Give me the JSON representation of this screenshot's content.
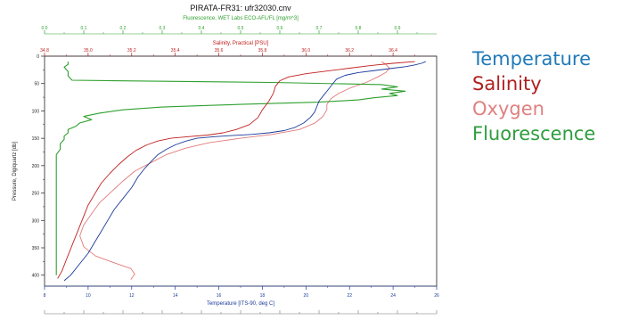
{
  "chart_data": {
    "type": "line",
    "title": "PIRATA-FR31: ufr32030.cnv",
    "ylabel": "Pressure, Digiquartz [db]",
    "ylim": [
      0,
      420
    ],
    "y_reversed": true,
    "y_ticks": [
      "0",
      "50",
      "100",
      "150",
      "200",
      "250",
      "300",
      "350",
      "400"
    ],
    "axes": {
      "temperature": {
        "label": "Temperature [ITS-90, deg C]",
        "position": "bottom",
        "range": [
          8,
          26
        ],
        "ticks": [
          "8",
          "10",
          "12",
          "14",
          "16",
          "18",
          "20",
          "22",
          "24",
          "26"
        ],
        "color": "#1a3a9a"
      },
      "salinity": {
        "label": "Salinity, Practical [PSU]",
        "position": "top-inner",
        "range": [
          34.8,
          36.6
        ],
        "ticks": [
          "34.8",
          "35.0",
          "35.2",
          "35.4",
          "35.6",
          "35.8",
          "36.0",
          "36.2",
          "36.4"
        ],
        "color": "#c02020"
      },
      "fluorescence": {
        "label": "Fluorescence, WET Labs ECO-AFL/FL [mg/m^3]",
        "position": "top-outer",
        "range": [
          0.0,
          1.0
        ],
        "ticks": [
          "0.0",
          "0.1",
          "0.2",
          "0.3",
          "0.4",
          "0.5",
          "0.6",
          "0.7",
          "0.8",
          "0.9"
        ],
        "color": "#2fa02f"
      },
      "oxygen": {
        "position": "bottom-outer",
        "range": [
          0,
          1
        ],
        "color": "#e07a7a"
      }
    },
    "series": [
      {
        "key": "temperature",
        "name": "Temperature",
        "color": "#1a3a9a",
        "points": [
          [
            25.5,
            10
          ],
          [
            25.3,
            13
          ],
          [
            25.0,
            16
          ],
          [
            24.6,
            19
          ],
          [
            24.0,
            22
          ],
          [
            23.2,
            26
          ],
          [
            22.4,
            30
          ],
          [
            21.8,
            35
          ],
          [
            21.4,
            42
          ],
          [
            21.2,
            52
          ],
          [
            21.0,
            62
          ],
          [
            20.8,
            72
          ],
          [
            20.6,
            82
          ],
          [
            20.5,
            92
          ],
          [
            20.4,
            102
          ],
          [
            20.2,
            112
          ],
          [
            19.9,
            122
          ],
          [
            19.5,
            130
          ],
          [
            19.0,
            136
          ],
          [
            18.3,
            140
          ],
          [
            17.5,
            143
          ],
          [
            16.6,
            145
          ],
          [
            15.8,
            147
          ],
          [
            15.0,
            150
          ],
          [
            14.5,
            155
          ],
          [
            14.0,
            162
          ],
          [
            13.6,
            170
          ],
          [
            13.2,
            180
          ],
          [
            12.9,
            192
          ],
          [
            12.6,
            205
          ],
          [
            12.3,
            220
          ],
          [
            12.0,
            240
          ],
          [
            11.6,
            260
          ],
          [
            11.2,
            280
          ],
          [
            10.9,
            300
          ],
          [
            10.6,
            320
          ],
          [
            10.3,
            340
          ],
          [
            10.0,
            360
          ],
          [
            9.6,
            380
          ],
          [
            9.2,
            400
          ],
          [
            8.9,
            410
          ]
        ]
      },
      {
        "key": "salinity",
        "name": "Salinity",
        "color": "#c02020",
        "points": [
          [
            36.5,
            10
          ],
          [
            36.4,
            13
          ],
          [
            36.3,
            17
          ],
          [
            36.2,
            22
          ],
          [
            36.1,
            27
          ],
          [
            36.0,
            32
          ],
          [
            35.92,
            38
          ],
          [
            35.88,
            45
          ],
          [
            35.86,
            55
          ],
          [
            35.85,
            68
          ],
          [
            35.83,
            82
          ],
          [
            35.8,
            98
          ],
          [
            35.78,
            112
          ],
          [
            35.74,
            125
          ],
          [
            35.68,
            134
          ],
          [
            35.62,
            140
          ],
          [
            35.55,
            144
          ],
          [
            35.46,
            147
          ],
          [
            35.38,
            150
          ],
          [
            35.32,
            155
          ],
          [
            35.27,
            162
          ],
          [
            35.22,
            172
          ],
          [
            35.18,
            184
          ],
          [
            35.14,
            198
          ],
          [
            35.1,
            214
          ],
          [
            35.06,
            232
          ],
          [
            35.03,
            252
          ],
          [
            35.0,
            272
          ],
          [
            34.98,
            292
          ],
          [
            34.96,
            312
          ],
          [
            34.94,
            332
          ],
          [
            34.92,
            352
          ],
          [
            34.9,
            372
          ],
          [
            34.88,
            392
          ],
          [
            34.86,
            406
          ]
        ]
      },
      {
        "key": "oxygen",
        "name": "Oxygen",
        "color": "#e07a7a",
        "points": [
          [
            0.86,
            10
          ],
          [
            0.87,
            15
          ],
          [
            0.88,
            22
          ],
          [
            0.87,
            30
          ],
          [
            0.85,
            38
          ],
          [
            0.82,
            48
          ],
          [
            0.78,
            58
          ],
          [
            0.75,
            68
          ],
          [
            0.73,
            78
          ],
          [
            0.72,
            88
          ],
          [
            0.72,
            98
          ],
          [
            0.71,
            110
          ],
          [
            0.69,
            122
          ],
          [
            0.65,
            134
          ],
          [
            0.58,
            143
          ],
          [
            0.5,
            150
          ],
          [
            0.42,
            158
          ],
          [
            0.36,
            168
          ],
          [
            0.31,
            180
          ],
          [
            0.27,
            195
          ],
          [
            0.23,
            210
          ],
          [
            0.2,
            228
          ],
          [
            0.17,
            248
          ],
          [
            0.14,
            268
          ],
          [
            0.12,
            288
          ],
          [
            0.1,
            308
          ],
          [
            0.09,
            328
          ],
          [
            0.1,
            348
          ],
          [
            0.13,
            365
          ],
          [
            0.18,
            378
          ],
          [
            0.22,
            388
          ],
          [
            0.23,
            398
          ],
          [
            0.22,
            408
          ]
        ]
      },
      {
        "key": "fluorescence",
        "name": "Fluorescence",
        "color": "#2fa02f",
        "points": [
          [
            0.06,
            10
          ],
          [
            0.06,
            15
          ],
          [
            0.05,
            20
          ],
          [
            0.06,
            28
          ],
          [
            0.06,
            36
          ],
          [
            0.07,
            44
          ],
          [
            0.58,
            48
          ],
          [
            0.86,
            52
          ],
          [
            0.9,
            56
          ],
          [
            0.86,
            60
          ],
          [
            0.92,
            64
          ],
          [
            0.88,
            68
          ],
          [
            0.9,
            72
          ],
          [
            0.84,
            76
          ],
          [
            0.8,
            80
          ],
          [
            0.7,
            84
          ],
          [
            0.5,
            88
          ],
          [
            0.3,
            93
          ],
          [
            0.2,
            98
          ],
          [
            0.14,
            104
          ],
          [
            0.1,
            110
          ],
          [
            0.12,
            116
          ],
          [
            0.09,
            122
          ],
          [
            0.08,
            128
          ],
          [
            0.06,
            134
          ],
          [
            0.06,
            140
          ],
          [
            0.05,
            146
          ],
          [
            0.05,
            152
          ],
          [
            0.04,
            160
          ],
          [
            0.04,
            170
          ],
          [
            0.03,
            180
          ],
          [
            0.03,
            200
          ],
          [
            0.03,
            220
          ],
          [
            0.03,
            240
          ],
          [
            0.03,
            260
          ],
          [
            0.03,
            280
          ],
          [
            0.03,
            300
          ],
          [
            0.03,
            320
          ],
          [
            0.03,
            340
          ],
          [
            0.03,
            360
          ],
          [
            0.03,
            380
          ],
          [
            0.03,
            400
          ]
        ]
      }
    ]
  },
  "legend": {
    "items": [
      {
        "label": "Temperature",
        "color": "#1f7ab8"
      },
      {
        "label": "Salinity",
        "color": "#b02020"
      },
      {
        "label": "Oxygen",
        "color": "#e08080"
      },
      {
        "label": "Fluorescence",
        "color": "#2e9e3e"
      }
    ]
  }
}
